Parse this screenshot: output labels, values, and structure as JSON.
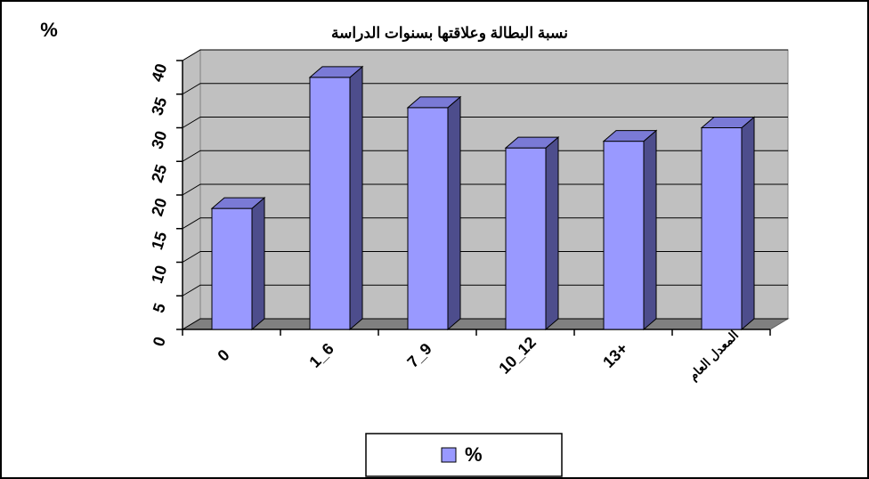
{
  "chart_data": {
    "type": "bar3d",
    "title": "نسبة البطالة وعلاقتها بسنوات الدراسة",
    "ylabel": "%",
    "categories": [
      "0",
      "1_6",
      "7_9",
      "10_12",
      "13+",
      "المعدل العام"
    ],
    "series": [
      {
        "name": "%",
        "color": "#9999ff",
        "values": [
          18,
          37.5,
          33,
          27,
          28,
          30
        ]
      }
    ],
    "ylim": [
      0,
      40
    ],
    "yticks": [
      0,
      5,
      10,
      15,
      20,
      25,
      30,
      35,
      40
    ],
    "grid": true,
    "legend": "bottom"
  }
}
